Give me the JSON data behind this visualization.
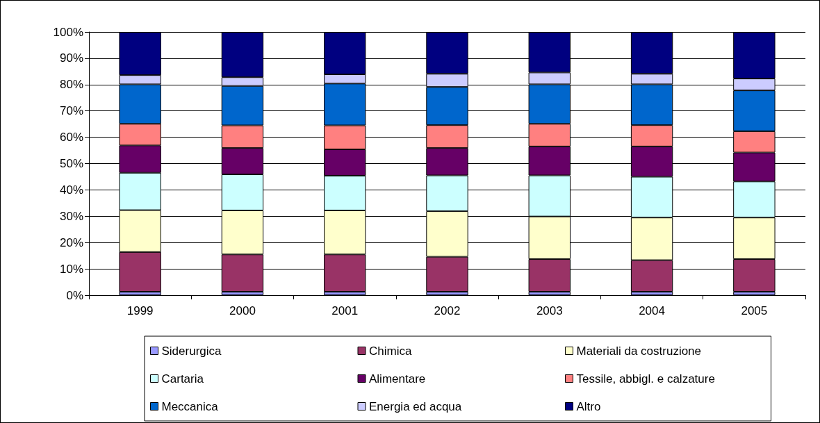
{
  "chart_data": {
    "type": "bar",
    "stacked": true,
    "categories": [
      "1999",
      "2000",
      "2001",
      "2002",
      "2003",
      "2004",
      "2005"
    ],
    "series": [
      {
        "name": "Siderurgica",
        "color": "#9999ff",
        "values": [
          1.3,
          1.3,
          1.3,
          1.3,
          1.3,
          1.3,
          1.3
        ]
      },
      {
        "name": "Chimica",
        "color": "#993366",
        "values": [
          15.1,
          14.2,
          14.2,
          13.3,
          12.4,
          12.0,
          12.4
        ]
      },
      {
        "name": "Materiali da costruzione",
        "color": "#ffffcc",
        "values": [
          15.9,
          16.7,
          16.7,
          17.3,
          16.2,
          16.2,
          15.8
        ]
      },
      {
        "name": "Cartaria",
        "color": "#ccffff",
        "values": [
          14.2,
          13.7,
          13.2,
          13.6,
          15.6,
          15.5,
          13.7
        ]
      },
      {
        "name": "Alimentare",
        "color": "#660066",
        "values": [
          10.4,
          10.0,
          10.0,
          10.4,
          11.0,
          11.5,
          11.0
        ]
      },
      {
        "name": "Tessile, abbigl. e calzature",
        "color": "#ff8080",
        "values": [
          8.2,
          8.6,
          9.1,
          8.7,
          8.6,
          8.1,
          8.1
        ]
      },
      {
        "name": "Meccanica",
        "color": "#0066cc",
        "values": [
          15.0,
          15.0,
          15.9,
          14.5,
          15.0,
          15.5,
          15.5
        ]
      },
      {
        "name": "Energia ed acqua",
        "color": "#ccccff",
        "values": [
          3.5,
          3.3,
          3.5,
          5.0,
          4.5,
          4.0,
          4.5
        ]
      },
      {
        "name": "Altro",
        "color": "#000080",
        "values": [
          16.4,
          17.2,
          16.1,
          15.9,
          15.4,
          15.9,
          17.7
        ]
      }
    ],
    "ylim": [
      0,
      100
    ],
    "yticks": [
      {
        "value": 0,
        "label": "0%"
      },
      {
        "value": 10,
        "label": "10%"
      },
      {
        "value": 20,
        "label": "20%"
      },
      {
        "value": 30,
        "label": "30%"
      },
      {
        "value": 40,
        "label": "40%"
      },
      {
        "value": 50,
        "label": "50%"
      },
      {
        "value": 60,
        "label": "60%"
      },
      {
        "value": 70,
        "label": "70%"
      },
      {
        "value": 80,
        "label": "80%"
      },
      {
        "value": 90,
        "label": "90%"
      },
      {
        "value": 100,
        "label": "100%"
      }
    ],
    "grid": "y",
    "legend": "bottom"
  }
}
